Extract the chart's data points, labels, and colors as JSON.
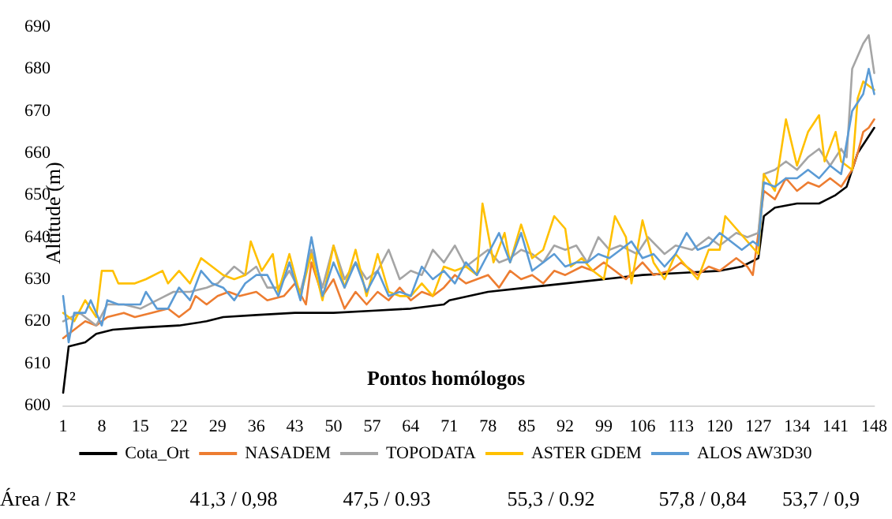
{
  "chart_data": {
    "type": "line",
    "xlabel": "Pontos homólogos",
    "ylabel": "Altitude (m)",
    "xlim": [
      1,
      148
    ],
    "xticks": [
      1,
      8,
      15,
      22,
      29,
      36,
      43,
      50,
      57,
      64,
      71,
      78,
      85,
      92,
      99,
      106,
      113,
      120,
      127,
      134,
      141,
      148
    ],
    "ylim": [
      600,
      690
    ],
    "yticks": [
      600,
      610,
      620,
      630,
      640,
      650,
      660,
      670,
      680,
      690
    ],
    "grid": false,
    "legend": "bottom",
    "marker": "none",
    "line_style": "solid",
    "annotations": [
      "Área / R²",
      "41,3 / 0,98",
      "47,5 / 0.93",
      "55,3 / 0.92",
      "57,8 / 0,84",
      "53,7 / 0,9"
    ],
    "series": [
      {
        "name": "Cota_Ort",
        "color": "#000000",
        "x": [
          1,
          2,
          5,
          7,
          10,
          15,
          22,
          27,
          30,
          36,
          43,
          50,
          57,
          64,
          70,
          71,
          78,
          85,
          92,
          99,
          106,
          113,
          120,
          124,
          127,
          128,
          130,
          134,
          138,
          141,
          143,
          145,
          147,
          148
        ],
        "values": [
          603,
          614,
          615,
          617,
          618,
          618.5,
          619,
          620,
          621,
          621.5,
          622,
          622,
          622.5,
          623,
          624,
          625,
          627,
          628,
          629,
          630,
          631,
          631.5,
          632,
          633,
          635,
          645,
          647,
          648,
          648,
          650,
          652,
          660,
          664,
          666
        ]
      },
      {
        "name": "NASADEM",
        "color": "#ed7d31",
        "x": [
          1,
          3,
          5,
          7,
          9,
          12,
          14,
          17,
          20,
          22,
          24,
          25,
          27,
          29,
          31,
          33,
          36,
          38,
          41,
          43,
          45,
          46,
          48,
          50,
          52,
          54,
          56,
          58,
          60,
          62,
          64,
          66,
          68,
          70,
          72,
          74,
          76,
          78,
          80,
          82,
          84,
          86,
          88,
          90,
          92,
          95,
          97,
          99,
          101,
          103,
          106,
          108,
          111,
          113,
          116,
          118,
          120,
          123,
          125,
          126,
          128,
          130,
          132,
          134,
          136,
          138,
          140,
          142,
          144,
          145,
          146,
          147,
          148
        ],
        "values": [
          616,
          618,
          620,
          619,
          621,
          622,
          621,
          622,
          623,
          621,
          623,
          626,
          624,
          626,
          627,
          626,
          627,
          625,
          626,
          629,
          624,
          634,
          626,
          630,
          623,
          627,
          624,
          627,
          625,
          628,
          625,
          627,
          626,
          628,
          631,
          629,
          630,
          631,
          628,
          632,
          630,
          631,
          629,
          632,
          631,
          633,
          632,
          634,
          632,
          630,
          634,
          631,
          632,
          634,
          631,
          633,
          632,
          635,
          633,
          631,
          651,
          649,
          654,
          651,
          653,
          652,
          654,
          652,
          656,
          660,
          665,
          666,
          668
        ]
      },
      {
        "name": "TOPODATA",
        "color": "#a5a5a5",
        "x": [
          1,
          4,
          7,
          9,
          12,
          15,
          18,
          21,
          24,
          27,
          29,
          32,
          34,
          36,
          38,
          40,
          42,
          44,
          46,
          48,
          50,
          52,
          54,
          56,
          58,
          60,
          62,
          64,
          66,
          68,
          70,
          72,
          74,
          76,
          78,
          80,
          82,
          84,
          86,
          88,
          90,
          92,
          94,
          96,
          98,
          100,
          102,
          105,
          107,
          110,
          112,
          115,
          118,
          120,
          123,
          125,
          127,
          128,
          130,
          132,
          134,
          136,
          138,
          140,
          142,
          143,
          144,
          146,
          147,
          148
        ],
        "values": [
          620,
          622,
          619,
          624,
          624,
          623,
          625,
          627,
          627,
          628,
          629,
          633,
          631,
          633,
          628,
          628,
          632,
          627,
          637,
          628,
          638,
          630,
          634,
          630,
          632,
          637,
          630,
          632,
          631,
          637,
          634,
          638,
          633,
          635,
          637,
          634,
          635,
          637,
          636,
          634,
          638,
          637,
          638,
          634,
          640,
          637,
          638,
          636,
          640,
          636,
          638,
          637,
          640,
          638,
          641,
          640,
          641,
          655,
          656,
          658,
          656,
          659,
          661,
          657,
          661,
          659,
          680,
          686,
          688,
          679
        ]
      },
      {
        "name": "ASTER GDEM",
        "color": "#ffc000",
        "x": [
          1,
          3,
          5,
          7,
          8,
          10,
          11,
          14,
          16,
          19,
          20,
          22,
          24,
          26,
          28,
          30,
          32,
          34,
          35,
          37,
          39,
          40,
          42,
          44,
          46,
          48,
          50,
          52,
          54,
          56,
          58,
          60,
          62,
          64,
          66,
          68,
          70,
          72,
          74,
          76,
          77,
          79,
          81,
          82,
          84,
          86,
          88,
          90,
          92,
          93,
          95,
          97,
          99,
          101,
          103,
          104,
          106,
          108,
          110,
          112,
          114,
          116,
          118,
          120,
          121,
          123,
          125,
          127,
          128,
          130,
          132,
          134,
          136,
          138,
          139,
          141,
          142,
          144,
          145,
          146,
          147,
          148
        ],
        "values": [
          622,
          620,
          625,
          621,
          632,
          632,
          629,
          629,
          630,
          632,
          629,
          632,
          629,
          635,
          633,
          631,
          630,
          631,
          639,
          632,
          636,
          627,
          636,
          626,
          636,
          625,
          638,
          628,
          637,
          626,
          636,
          627,
          626,
          626,
          629,
          626,
          633,
          632,
          633,
          631,
          648,
          634,
          641,
          634,
          643,
          635,
          637,
          645,
          642,
          633,
          635,
          632,
          630,
          645,
          640,
          629,
          644,
          634,
          630,
          636,
          633,
          630,
          637,
          637,
          645,
          642,
          639,
          636,
          655,
          651,
          668,
          657,
          665,
          669,
          658,
          665,
          658,
          656,
          673,
          677,
          676,
          675
        ]
      },
      {
        "name": "ALOS AW3D30",
        "color": "#5b9bd5",
        "x": [
          1,
          2,
          3,
          5,
          6,
          8,
          9,
          11,
          13,
          15,
          16,
          18,
          20,
          22,
          24,
          26,
          28,
          30,
          32,
          34,
          36,
          38,
          40,
          42,
          44,
          46,
          48,
          50,
          52,
          54,
          56,
          58,
          60,
          62,
          64,
          66,
          68,
          70,
          72,
          74,
          76,
          78,
          80,
          82,
          84,
          86,
          88,
          90,
          92,
          94,
          96,
          98,
          100,
          102,
          104,
          106,
          108,
          110,
          112,
          114,
          116,
          118,
          120,
          122,
          124,
          126,
          127,
          128,
          130,
          132,
          134,
          136,
          138,
          140,
          142,
          144,
          146,
          147,
          148
        ],
        "values": [
          626,
          615,
          622,
          622,
          625,
          619,
          625,
          624,
          624,
          624,
          627,
          623,
          623,
          628,
          625,
          632,
          629,
          628,
          625,
          629,
          631,
          631,
          626,
          634,
          625,
          640,
          626,
          634,
          628,
          634,
          627,
          632,
          626,
          627,
          626,
          633,
          630,
          632,
          629,
          634,
          631,
          636,
          641,
          634,
          641,
          632,
          634,
          636,
          633,
          634,
          634,
          636,
          635,
          637,
          639,
          635,
          636,
          633,
          636,
          641,
          637,
          638,
          641,
          639,
          637,
          639,
          638,
          653,
          652,
          654,
          654,
          656,
          654,
          657,
          655,
          670,
          674,
          680,
          674
        ]
      }
    ]
  }
}
